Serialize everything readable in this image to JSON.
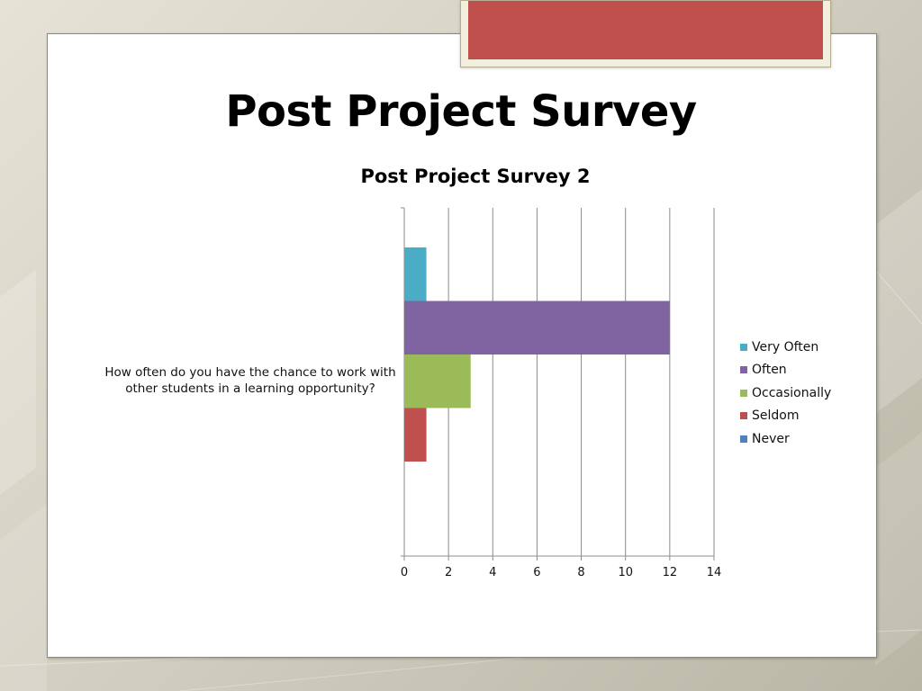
{
  "slide": {
    "title": "Post Project Survey",
    "accent_color": "#c0504d"
  },
  "chart_data": {
    "type": "bar",
    "orientation": "horizontal",
    "title": "Post Project Survey 2",
    "categories": [
      "How often do you have the chance to work with other students in a learning opportunity?"
    ],
    "series": [
      {
        "name": "Very Often",
        "values": [
          1
        ],
        "color": "#4bacc6"
      },
      {
        "name": "Often",
        "values": [
          12
        ],
        "color": "#8064a2"
      },
      {
        "name": "Occasionally",
        "values": [
          3
        ],
        "color": "#9bbb59"
      },
      {
        "name": "Seldom",
        "values": [
          1
        ],
        "color": "#c0504d"
      },
      {
        "name": "Never",
        "values": [
          0
        ],
        "color": "#4f81bd"
      }
    ],
    "xlim": [
      0,
      14
    ],
    "xticks": [
      0,
      2,
      4,
      6,
      8,
      10,
      12,
      14
    ],
    "grid": true,
    "legend_position": "right"
  }
}
